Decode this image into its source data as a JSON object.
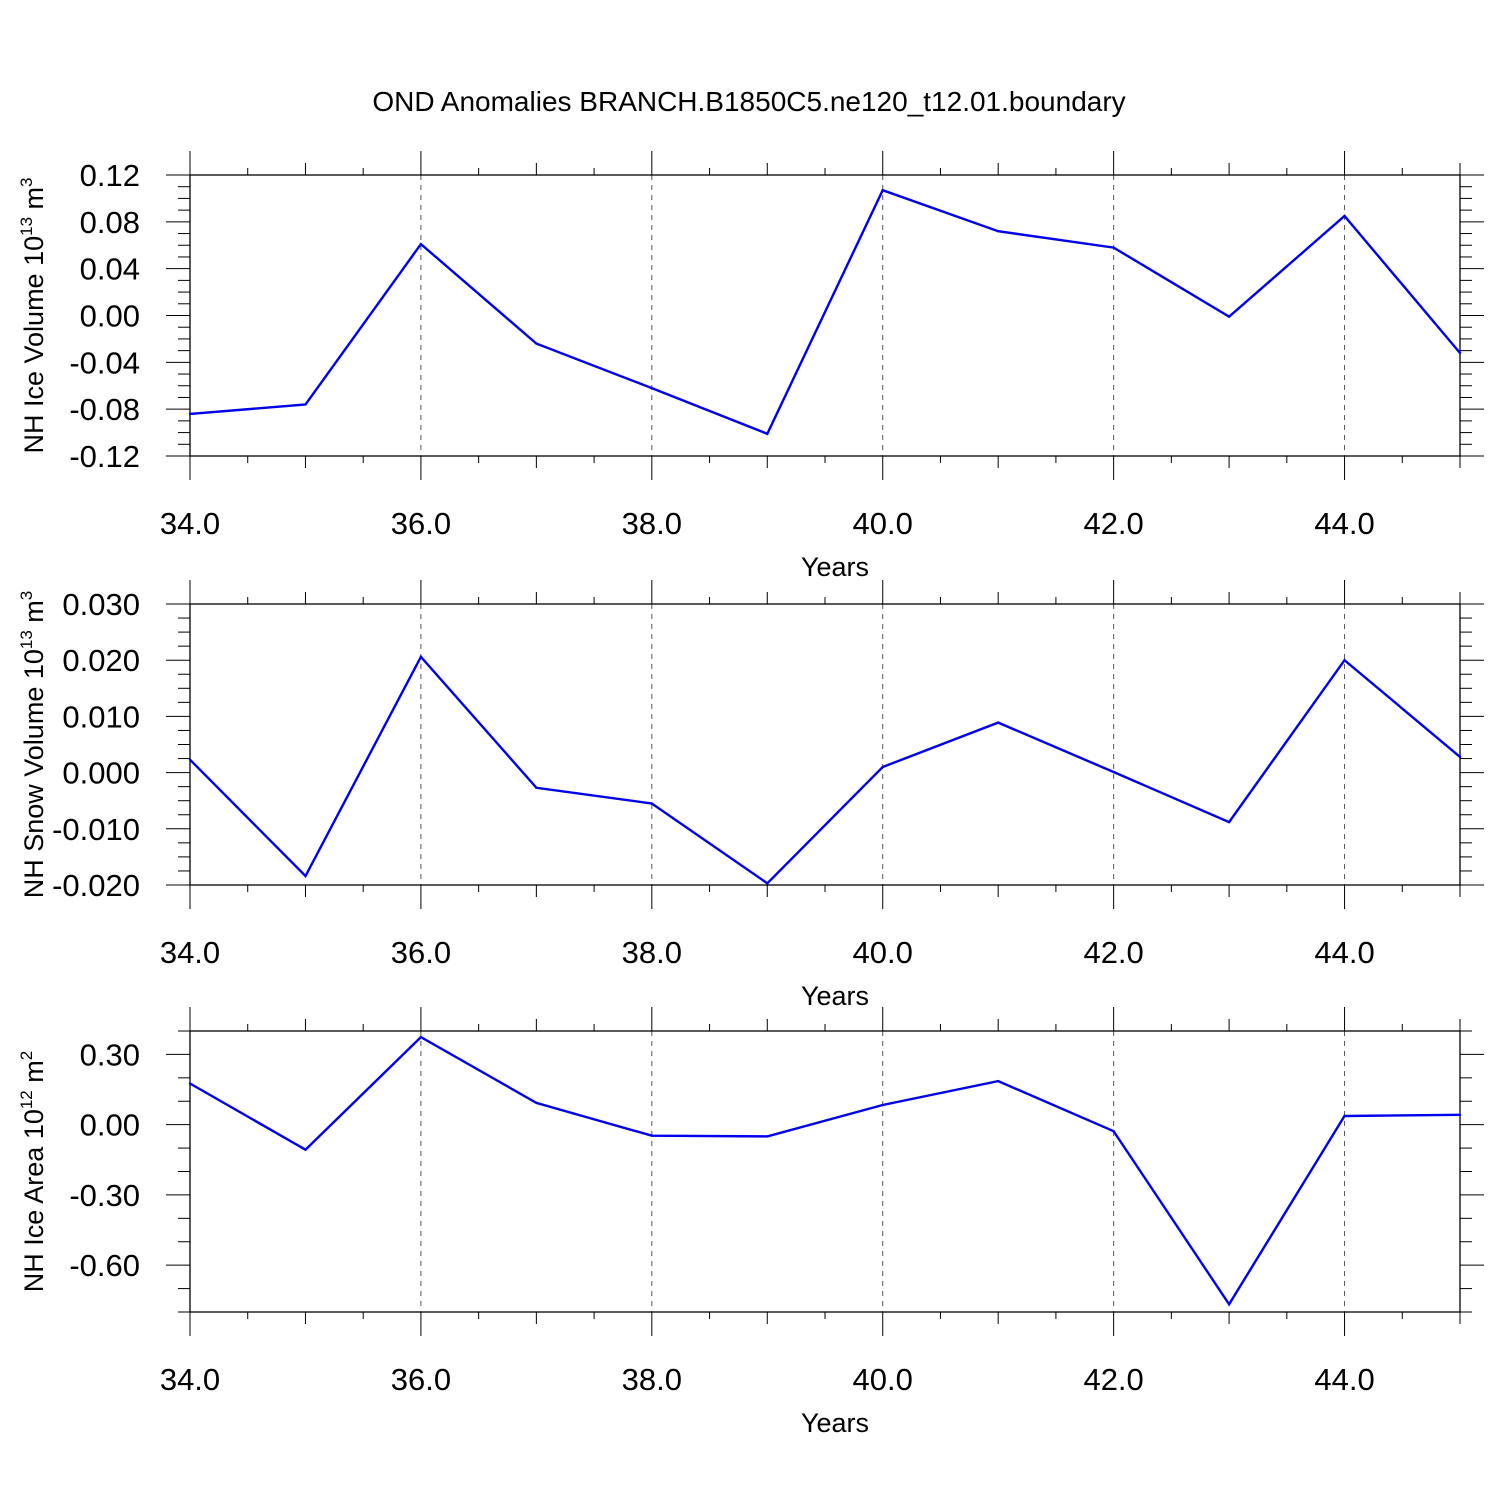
{
  "figure": {
    "title": "OND Anomalies BRANCH.B1850C5.ne120_t12.01.boundary",
    "line_color": "#0000ee"
  },
  "chart_data": [
    {
      "type": "line",
      "name": "nh-ice-volume",
      "ylabel": {
        "prefix": "NH Ice Volume 10",
        "exp1": "13",
        "mid": " m",
        "exp2": "3"
      },
      "xlabel": "Years",
      "xlim": [
        34,
        45
      ],
      "ylim": [
        -0.12,
        0.12
      ],
      "x_ticks": [
        "34.0",
        "36.0",
        "38.0",
        "40.0",
        "42.0",
        "44.0"
      ],
      "y_ticks": [
        "0.12",
        "0.08",
        "0.04",
        "0.00",
        "-0.04",
        "-0.08",
        "-0.12"
      ],
      "x": [
        34,
        35,
        36,
        37,
        38,
        39,
        40,
        41,
        42,
        43,
        44,
        45
      ],
      "values": [
        -0.084,
        -0.076,
        0.061,
        -0.024,
        -0.062,
        -0.101,
        0.107,
        0.072,
        0.058,
        -0.001,
        0.085,
        -0.032
      ],
      "grid": "vertical-dashed"
    },
    {
      "type": "line",
      "name": "nh-snow-volume",
      "ylabel": {
        "prefix": "NH Snow Volume 10",
        "exp1": "13",
        "mid": " m",
        "exp2": "3"
      },
      "xlabel": "Years",
      "xlim": [
        34,
        45
      ],
      "ylim": [
        -0.02,
        0.03
      ],
      "x_ticks": [
        "34.0",
        "36.0",
        "38.0",
        "40.0",
        "42.0",
        "44.0"
      ],
      "y_ticks": [
        "0.030",
        "0.020",
        "0.010",
        "0.000",
        "-0.010",
        "-0.020"
      ],
      "x": [
        34,
        35,
        36,
        37,
        38,
        39,
        40,
        41,
        42,
        43,
        44,
        45
      ],
      "values": [
        0.0023,
        -0.0184,
        0.0206,
        -0.0027,
        -0.0055,
        -0.0197,
        0.001,
        0.0089,
        0.0001,
        -0.0088,
        0.02,
        0.0028
      ],
      "grid": "vertical-dashed"
    },
    {
      "type": "line",
      "name": "nh-ice-area",
      "ylabel": {
        "prefix": "NH Ice Area 10",
        "exp1": "12",
        "mid": " m",
        "exp2": "2"
      },
      "xlabel": "Years",
      "xlim": [
        34,
        45
      ],
      "ylim": [
        -0.8,
        0.4
      ],
      "x_ticks": [
        "34.0",
        "36.0",
        "38.0",
        "40.0",
        "42.0",
        "44.0"
      ],
      "y_ticks": [
        "0.30",
        "0.00",
        "-0.30",
        "-0.60"
      ],
      "x": [
        34,
        35,
        36,
        37,
        38,
        39,
        40,
        41,
        42,
        43,
        44,
        45
      ],
      "values": [
        0.176,
        -0.107,
        0.374,
        0.093,
        -0.047,
        -0.05,
        0.084,
        0.186,
        -0.028,
        -0.767,
        0.037,
        0.042
      ],
      "grid": "vertical-dashed"
    }
  ]
}
